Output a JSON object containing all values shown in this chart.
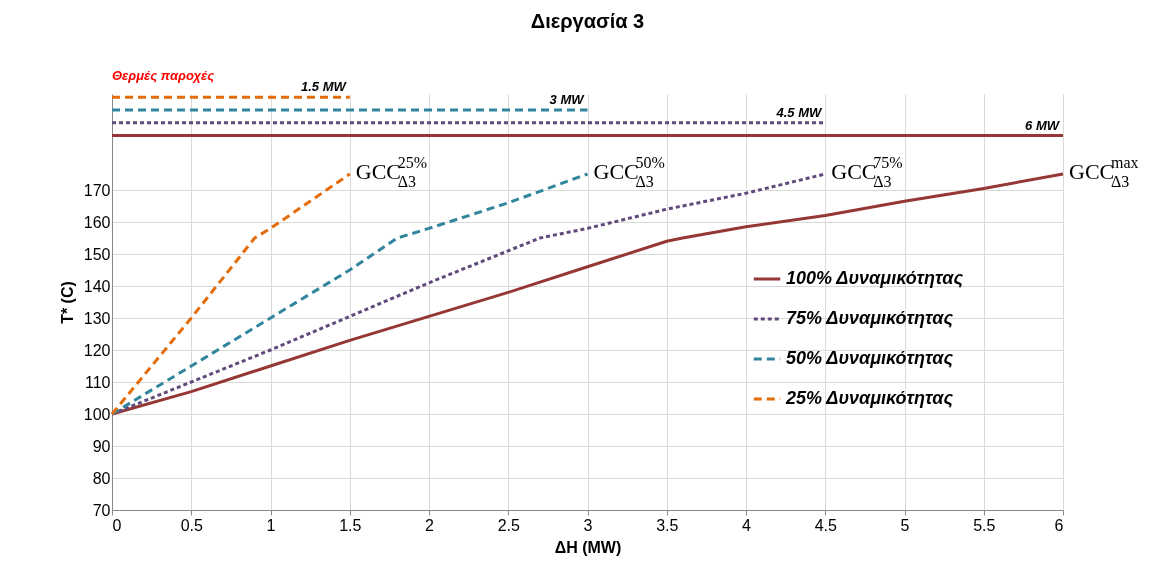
{
  "chart_data": {
    "type": "line",
    "title": "Διεργασία 3",
    "xlabel": "ΔH (MW)",
    "ylabel": "T* (C)",
    "xlim": [
      0,
      6
    ],
    "xticks": [
      0,
      0.5,
      1,
      1.5,
      2,
      2.5,
      3,
      3.5,
      4,
      4.5,
      5,
      5.5,
      6
    ],
    "ylim": [
      70,
      200
    ],
    "yticks": [
      70,
      80,
      90,
      100,
      110,
      120,
      130,
      140,
      150,
      160,
      170
    ],
    "grid": true,
    "legend": "right",
    "series": [
      {
        "name": "100% Δυναμικότητας",
        "color": "#953735",
        "line_style": "solid",
        "x": [
          0,
          0.5,
          1,
          1.5,
          2,
          2.5,
          3,
          3.5,
          3.6,
          4,
          4.5,
          5,
          5.5,
          6
        ],
        "values": [
          100,
          107,
          115,
          123,
          130.5,
          138,
          146,
          154,
          155,
          158.5,
          162,
          166.5,
          170.5,
          175
        ]
      },
      {
        "name": "75% Δυναμικότητας",
        "color": "#604a7b",
        "line_style": "dotted",
        "x": [
          0,
          0.5,
          1,
          1.5,
          2,
          2.5,
          2.7,
          3,
          3.5,
          4,
          4.5
        ],
        "values": [
          100,
          110,
          120,
          130.5,
          141,
          151,
          155,
          158,
          164,
          169,
          175
        ]
      },
      {
        "name": "50% Δυναμικότητας",
        "color": "#31859c",
        "line_style": "dashed",
        "x": [
          0,
          0.5,
          1,
          1.5,
          1.8,
          2,
          2.5,
          3
        ],
        "values": [
          100,
          115,
          130,
          145,
          155,
          158,
          166,
          175
        ]
      },
      {
        "name": "25% Δυναμικότητας",
        "color": "#e46c0a",
        "line_style": "dashed",
        "x": [
          0,
          0.5,
          0.9,
          1,
          1.5
        ],
        "values": [
          100,
          130,
          155,
          158,
          175
        ]
      },
      {
        "color": "#e46c0a",
        "line_style": "dashed",
        "x": [
          0,
          1.5
        ],
        "values": [
          199,
          199
        ]
      },
      {
        "color": "#31859c",
        "line_style": "dashed",
        "x": [
          0,
          3
        ],
        "values": [
          195,
          195
        ]
      },
      {
        "color": "#604a7b",
        "line_style": "dotted",
        "x": [
          0,
          4.5
        ],
        "values": [
          191,
          191
        ]
      },
      {
        "color": "#953735",
        "line_style": "solid",
        "x": [
          0,
          6
        ],
        "values": [
          187,
          187
        ]
      }
    ],
    "annotations": [
      "Θερμές παροχές",
      {
        "text": "1.5 MW",
        "x": 1.5,
        "y": 199
      },
      {
        "text": "3 MW",
        "x": 3,
        "y": 195
      },
      {
        "text": "4.5 MW",
        "x": 4.5,
        "y": 191
      },
      {
        "text": "6 MW",
        "x": 6,
        "y": 187
      },
      {
        "text": "GCC$^{25%}$$_{Δ3}$",
        "x": 1.5,
        "y": 175
      },
      {
        "text": "GCC$^{50%}$$_{Δ3}$",
        "x": 3,
        "y": 175
      },
      {
        "text": "GCC$^{75%}$$_{Δ3}$",
        "x": 4.5,
        "y": 175
      },
      {
        "text": "GCC$^{max}$$_{Δ3}$",
        "x": 6,
        "y": 175
      }
    ]
  }
}
